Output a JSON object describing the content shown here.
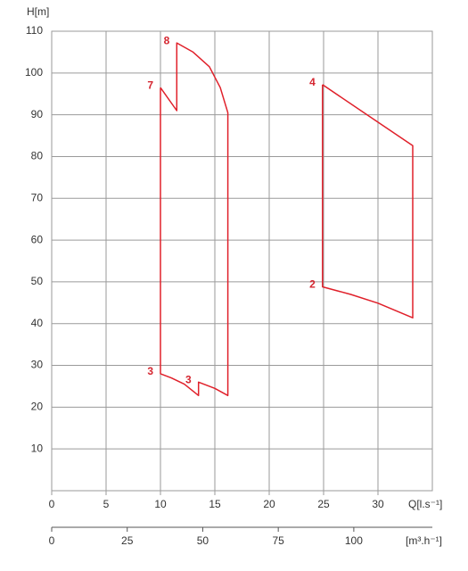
{
  "chart_data": {
    "type": "line",
    "y_label": "H[m]",
    "x_label": "Q[l.s⁻¹]",
    "x2_label": "[m³.h⁻¹]",
    "xlim": [
      0,
      35
    ],
    "xticks": [
      0,
      5,
      10,
      15,
      20,
      25,
      30
    ],
    "ylim": [
      0,
      110
    ],
    "yticks": [
      10,
      20,
      30,
      40,
      50,
      60,
      70,
      80,
      90,
      100,
      110
    ],
    "x2lim": [
      0,
      126
    ],
    "x2ticks": [
      0,
      25,
      50,
      75,
      100
    ],
    "grid": true,
    "series": [
      {
        "color": "#e0202a",
        "x": [
          10,
          10,
          11,
          12.2,
          13.5,
          13.5,
          15,
          16.2,
          16.2,
          15.5,
          14.5,
          13,
          11.5,
          11.5,
          10
        ],
        "values": [
          96.5,
          28,
          27,
          25.5,
          22.8,
          26,
          24.5,
          22.8,
          90.5,
          96.5,
          101.5,
          105,
          107.2,
          91,
          96.5
        ]
      },
      {
        "color": "#e0202a",
        "x": [
          24.9,
          33.2,
          33.2,
          30,
          27.5,
          24.9,
          24.9
        ],
        "values": [
          97.2,
          82.6,
          41.4,
          44.9,
          47,
          48.8,
          97.2
        ]
      }
    ],
    "annotations": [
      {
        "text": "8",
        "x": 11.5,
        "y": 107.2
      },
      {
        "text": "7",
        "x": 10,
        "y": 96.5
      },
      {
        "text": "3",
        "x": 10,
        "y": 28
      },
      {
        "text": "3",
        "x": 13.5,
        "y": 26
      },
      {
        "text": "4",
        "x": 24.9,
        "y": 97.2
      },
      {
        "text": "2",
        "x": 24.9,
        "y": 48.8
      }
    ]
  }
}
